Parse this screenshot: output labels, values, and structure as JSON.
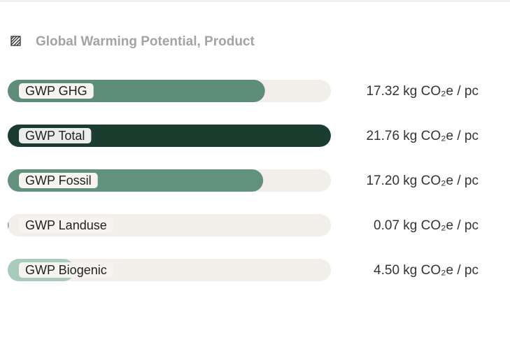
{
  "chart_data": {
    "type": "bar",
    "orientation": "horizontal",
    "title": "Global Warming Potential, Product",
    "categories": [
      "GWP GHG",
      "GWP Total",
      "GWP Fossil",
      "GWP Landuse",
      "GWP Biogenic"
    ],
    "values": [
      17.32,
      21.76,
      17.2,
      0.07,
      4.5
    ],
    "value_labels": [
      "17.32 kg CO₂e / pc",
      "21.76 kg CO₂e / pc",
      "17.20 kg CO₂e / pc",
      "0.07 kg CO₂e / pc",
      "4.50 kg CO₂e / pc"
    ],
    "colors": [
      "#5e8c7a",
      "#1b3d2f",
      "#62927f",
      "#6a9a86",
      "#a9cbbd"
    ],
    "xlim": [
      0,
      21.76
    ]
  }
}
